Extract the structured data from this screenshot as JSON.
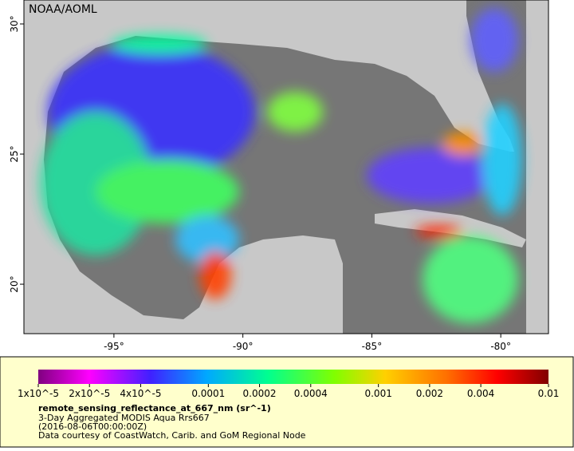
{
  "map": {
    "label": "NOAA/AOML",
    "xlim": [
      -98.49,
      -78.15
    ],
    "ylim": [
      18.1,
      30.92
    ],
    "xticks": [
      {
        "value": -95,
        "label": "-95°"
      },
      {
        "value": -90,
        "label": "-90°"
      },
      {
        "value": -85,
        "label": "-85°"
      },
      {
        "value": -80,
        "label": "-80°"
      }
    ],
    "yticks": [
      {
        "value": 20,
        "label": "20°"
      },
      {
        "value": 25,
        "label": "25°"
      },
      {
        "value": 30,
        "label": "30°"
      }
    ]
  },
  "colorbar": {
    "title": "remote_sensing_reflectance_at_667_nm (sr^-1)",
    "scale": "log",
    "lim": [
      1e-05,
      0.01
    ],
    "ticks": [
      {
        "value": 1e-05,
        "label": "1x10^-5"
      },
      {
        "value": 2e-05,
        "label": "2x10^-5"
      },
      {
        "value": 4e-05,
        "label": "4x10^-5"
      },
      0.0001,
      0.0002,
      0.0004,
      0.001,
      0.002,
      0.004,
      0.01
    ]
  },
  "caption": [
    "3-Day Aggregated MODIS Aqua Rrs667",
    "(2016-08-06T00:00:00Z)",
    "Data courtesy of CoastWatch, Carib. and GoM Regional Node"
  ]
}
